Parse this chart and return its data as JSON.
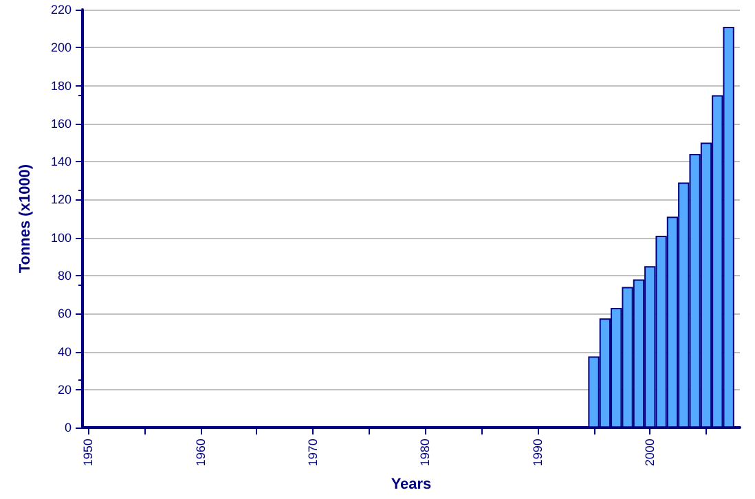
{
  "chart_data": {
    "type": "bar",
    "xlabel": "Years",
    "ylabel": "Tonnes (x1000)",
    "x": [
      1995,
      1996,
      1997,
      1998,
      1999,
      2000,
      2001,
      2002,
      2003,
      2004,
      2005,
      2006,
      2007
    ],
    "values": [
      37.5,
      57.5,
      63,
      74,
      78,
      85,
      101,
      111,
      129,
      144,
      150,
      175,
      211
    ],
    "color": "#55aaff",
    "xlim": [
      1949.5,
      2008
    ],
    "xticks": [
      1950,
      {
        "value": 1955,
        "label": null
      },
      1960,
      {
        "value": 1965,
        "label": null
      },
      1970,
      {
        "value": 1975,
        "label": null
      },
      1980,
      {
        "value": 1985,
        "label": null
      },
      1990,
      {
        "value": 1995,
        "label": null
      },
      2000,
      {
        "value": 2005,
        "label": null
      }
    ],
    "ylim": [
      0,
      220
    ],
    "yticks": [
      0,
      20,
      40,
      60,
      80,
      100,
      120,
      140,
      160,
      180,
      200,
      220
    ],
    "grid": "y"
  }
}
